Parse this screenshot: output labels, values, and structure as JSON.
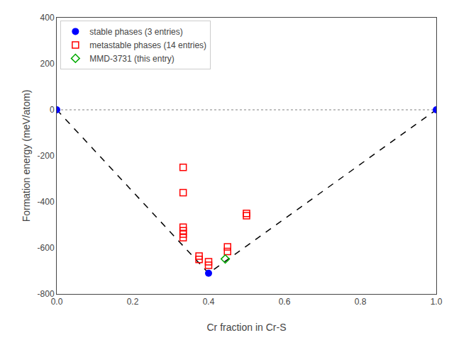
{
  "chart_data": {
    "type": "scatter",
    "xlabel": "Cr fraction in Cr-S",
    "ylabel": "Formation energy (meV/atom)",
    "xlim": [
      0.0,
      1.0
    ],
    "ylim": [
      -800,
      400
    ],
    "xticks": [
      {
        "value": 0.0,
        "label": "0.0"
      },
      {
        "value": 0.2,
        "label": "0.2"
      },
      {
        "value": 0.4,
        "label": "0.4"
      },
      {
        "value": 0.6,
        "label": "0.6"
      },
      {
        "value": 0.8,
        "label": "0.8"
      },
      {
        "value": 1.0,
        "label": "1.0"
      }
    ],
    "yticks": [
      -800,
      -600,
      -400,
      -200,
      0,
      200,
      400
    ],
    "grid": false,
    "legend": "upper left",
    "series": [
      {
        "type": "hline",
        "values": [
          0.0
        ],
        "color": "gray",
        "line_style": "dotted"
      },
      {
        "type": "line",
        "x": [
          0.0,
          0.4,
          1.0
        ],
        "values": [
          0.0,
          -710,
          0.0
        ],
        "color": "black",
        "line_style": "dashed"
      },
      {
        "type": "scatter",
        "name": "stable phases (3 entries)",
        "color": "#0000ff",
        "marker": "circle",
        "x": [
          0.0,
          0.4,
          1.0
        ],
        "values": [
          0.0,
          -710,
          0.0
        ]
      },
      {
        "type": "scatter",
        "name": "metastable phases (14 entries)",
        "color": "#ff0000",
        "marker": "square-open",
        "x": [
          0.333,
          0.333,
          0.333,
          0.333,
          0.333,
          0.333,
          0.375,
          0.375,
          0.4,
          0.4,
          0.45,
          0.45,
          0.5,
          0.5
        ],
        "values": [
          -250,
          -360,
          -510,
          -525,
          -540,
          -555,
          -635,
          -650,
          -660,
          -675,
          -595,
          -615,
          -450,
          -460
        ]
      },
      {
        "type": "scatter",
        "name": "MMD-3731 (this entry)",
        "color": "#00aa00",
        "marker": "diamond-open",
        "x": [
          0.444
        ],
        "values": [
          -648
        ]
      }
    ]
  }
}
